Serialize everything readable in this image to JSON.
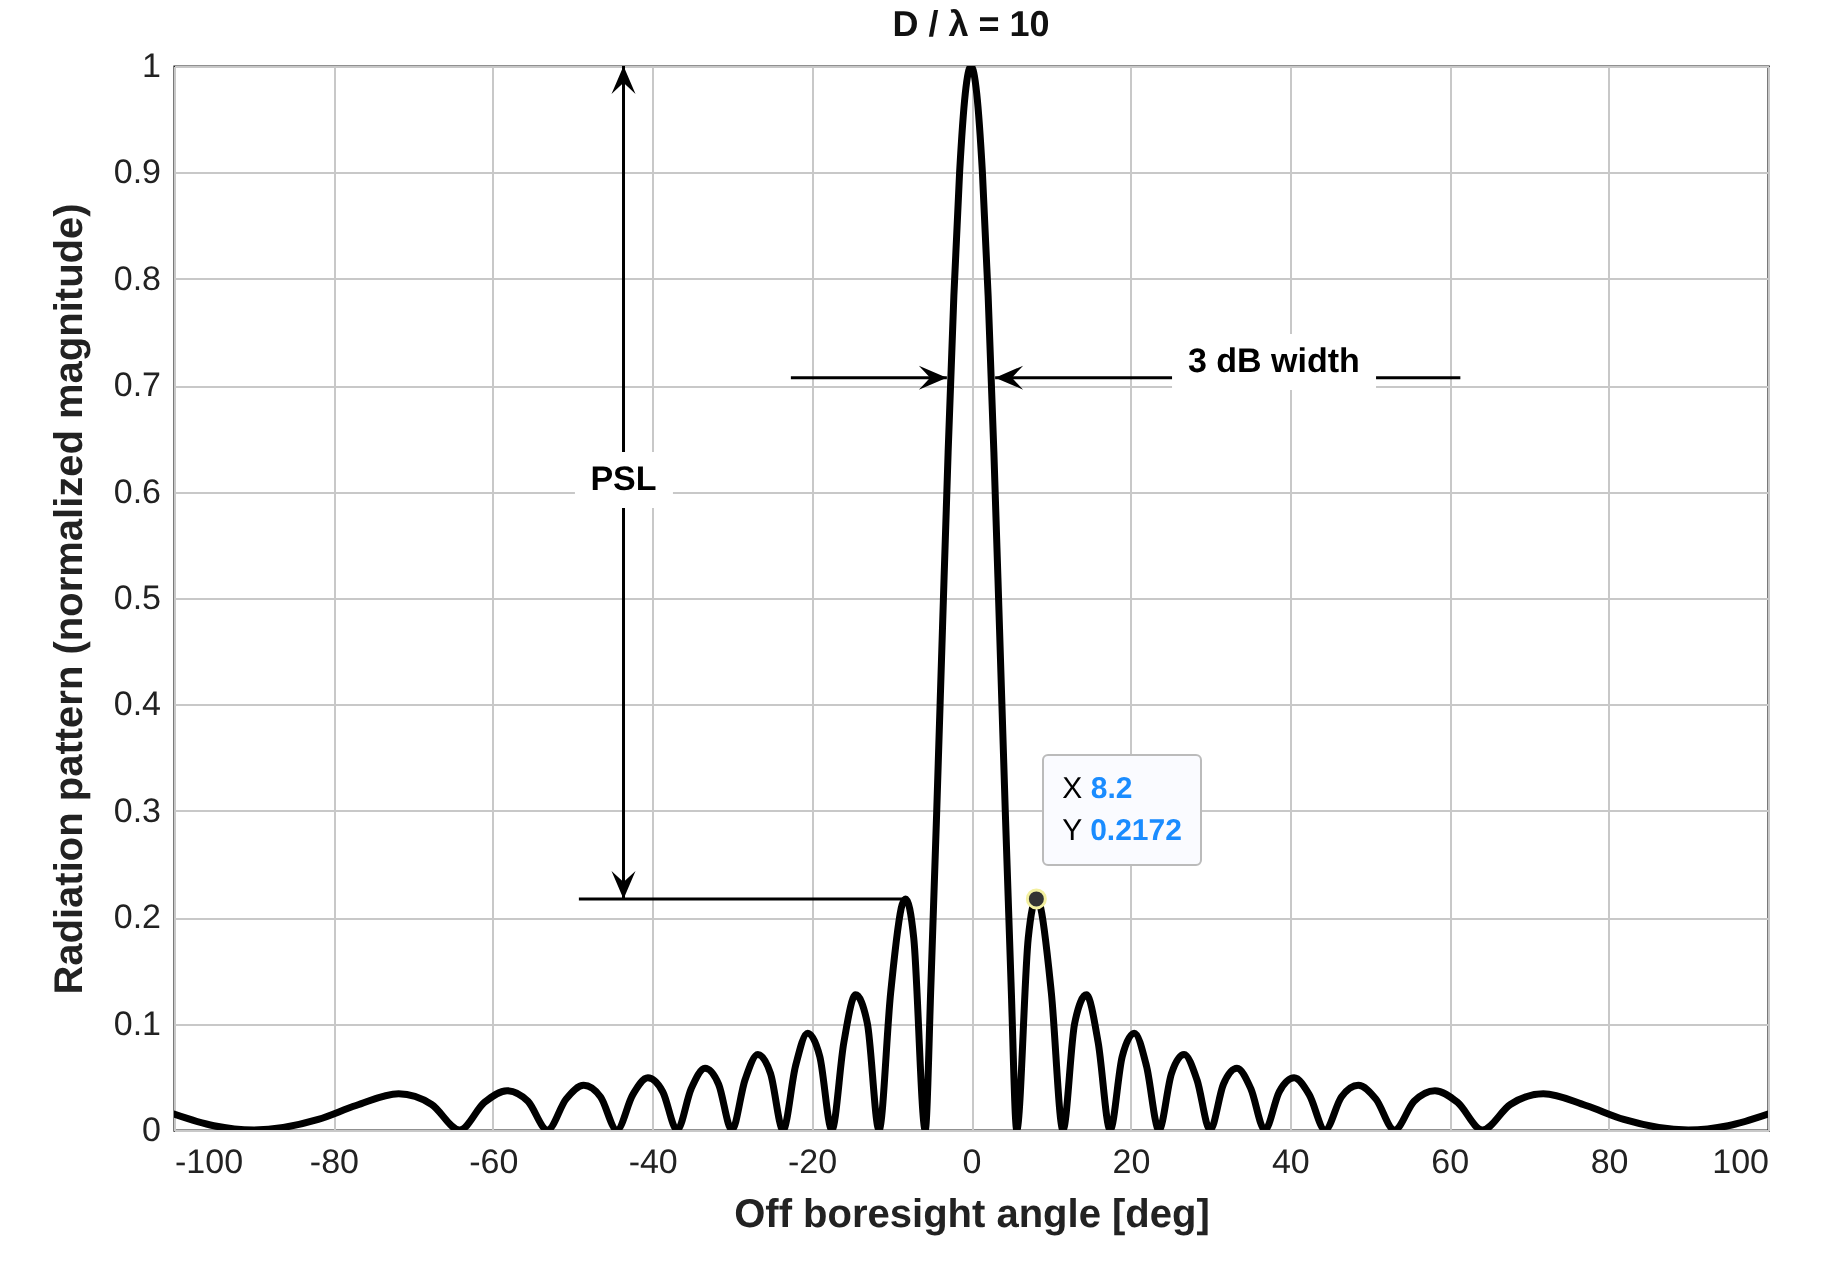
{
  "chart_data": {
    "type": "line",
    "title": "D / λ = 10",
    "xlabel": "Off boresight angle [deg]",
    "ylabel": "Radiation pattern (normalized magnitude)",
    "x": [
      -100,
      -95,
      -90,
      -81.9,
      -77.16,
      -71.81,
      -67.67,
      -64.16,
      -61.04,
      -58.21,
      -55.59,
      -53.13,
      -50.81,
      -48.59,
      -46.47,
      -44.43,
      -42.45,
      -40.54,
      -38.68,
      -36.87,
      -35.1,
      -33.37,
      -31.67,
      -30,
      -28.36,
      -26.74,
      -25.15,
      -23.58,
      -22.02,
      -20.49,
      -18.97,
      -17.46,
      -15.96,
      -14.48,
      -13,
      -11.54,
      -10.08,
      -8.63,
      -8.2,
      -7.18,
      -5.74,
      -5.02,
      -4.3,
      -3.58,
      -2.87,
      -2.15,
      -1.43,
      -0.72,
      0,
      0.72,
      1.43,
      2.15,
      2.87,
      3.58,
      4.3,
      5.02,
      5.74,
      7.18,
      8.2,
      8.63,
      10.08,
      11.54,
      13,
      14.48,
      15.96,
      17.46,
      18.97,
      20.49,
      22.02,
      23.58,
      25.15,
      26.74,
      28.36,
      30,
      31.67,
      33.37,
      35.1,
      36.87,
      38.68,
      40.54,
      42.45,
      44.43,
      46.47,
      48.59,
      50.81,
      53.13,
      55.59,
      58.21,
      61.04,
      64.16,
      67.67,
      71.81,
      77.16,
      81.9,
      90,
      95,
      100
    ],
    "series": [
      {
        "color": "#000000",
        "values": [
          0.015,
          0.004,
          0,
          0.01,
          0.023,
          0.034,
          0.024,
          0,
          0.026,
          0.037,
          0.027,
          0,
          0.029,
          0.042,
          0.031,
          0,
          0.033,
          0.049,
          0.036,
          0,
          0.039,
          0.058,
          0.043,
          0,
          0.047,
          0.071,
          0.053,
          0,
          0.06,
          0.091,
          0.069,
          0,
          0.082,
          0.127,
          0.1,
          0,
          0.129,
          0.212,
          0.2172,
          0.18,
          0,
          0.139,
          0.3,
          0.471,
          0.637,
          0.784,
          0.9,
          0.974,
          1,
          0.974,
          0.9,
          0.784,
          0.637,
          0.471,
          0.3,
          0.139,
          0,
          0.18,
          0.2172,
          0.212,
          0.129,
          0,
          0.1,
          0.127,
          0.082,
          0,
          0.069,
          0.091,
          0.06,
          0,
          0.053,
          0.071,
          0.047,
          0,
          0.043,
          0.058,
          0.039,
          0,
          0.036,
          0.049,
          0.033,
          0,
          0.031,
          0.042,
          0.029,
          0,
          0.027,
          0.037,
          0.026,
          0,
          0.024,
          0.034,
          0.023,
          0.01,
          0,
          0.004,
          0.015
        ]
      }
    ],
    "xlim": [
      -100,
      100
    ],
    "ylim": [
      0,
      1
    ],
    "xticks": [
      -100,
      -80,
      -60,
      -40,
      -20,
      0,
      20,
      40,
      60,
      80,
      100
    ],
    "yticks": [
      0,
      0.1,
      0.2,
      0.3,
      0.4,
      0.5,
      0.6,
      0.7,
      0.8,
      0.9,
      1
    ],
    "grid": true,
    "annotations": [
      "PSL",
      "3 dB width",
      {
        "text": "X 8.2\nY 0.2172",
        "x": 8.2,
        "y": 0.2172
      }
    ]
  }
}
